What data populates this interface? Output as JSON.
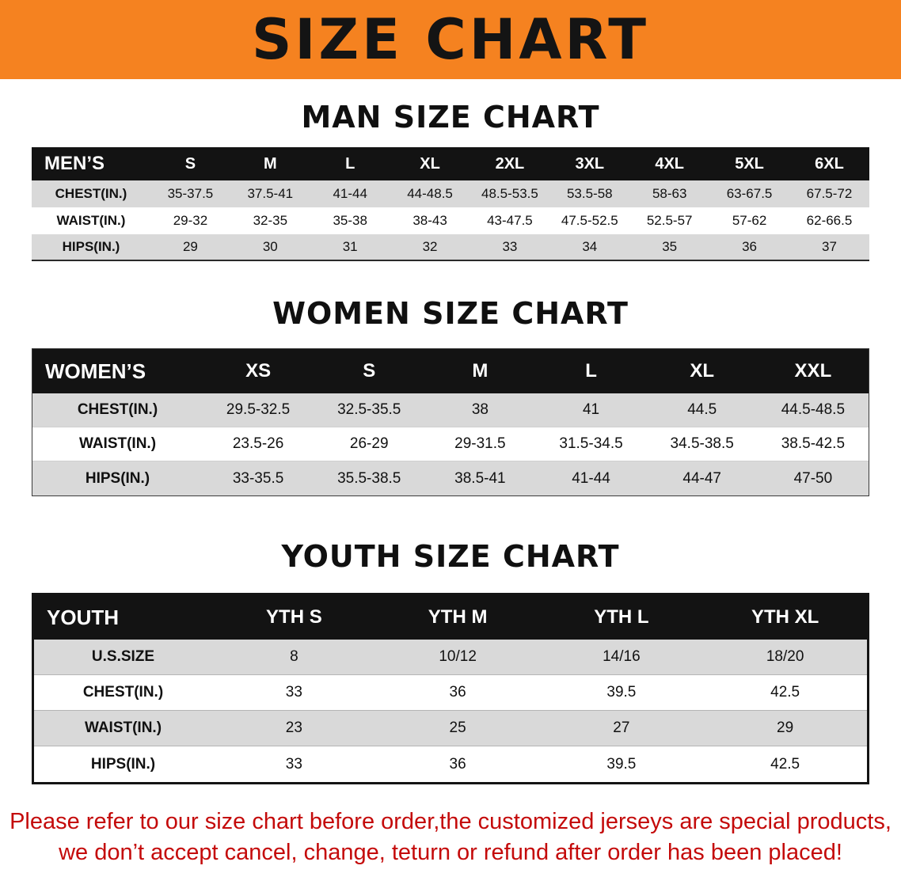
{
  "banner": {
    "title": "SIZE CHART"
  },
  "colors": {
    "banner_bg": "#F58220",
    "table_header_bg": "#131313",
    "row_shade": "#d9d9d9",
    "notice_red": "#C40A0A"
  },
  "sections": [
    {
      "title": "MAN SIZE CHART",
      "table": {
        "header_label": "MEN’S",
        "columns": [
          "S",
          "M",
          "L",
          "XL",
          "2XL",
          "3XL",
          "4XL",
          "5XL",
          "6XL"
        ],
        "rows": [
          {
            "label": "CHEST(IN.)",
            "values": [
              "35-37.5",
              "37.5-41",
              "41-44",
              "44-48.5",
              "48.5-53.5",
              "53.5-58",
              "58-63",
              "63-67.5",
              "67.5-72"
            ]
          },
          {
            "label": "WAIST(IN.)",
            "values": [
              "29-32",
              "32-35",
              "35-38",
              "38-43",
              "43-47.5",
              "47.5-52.5",
              "52.5-57",
              "57-62",
              "62-66.5"
            ]
          },
          {
            "label": "HIPS(IN.)",
            "values": [
              "29",
              "30",
              "31",
              "32",
              "33",
              "34",
              "35",
              "36",
              "37"
            ]
          }
        ]
      }
    },
    {
      "title": "WOMEN SIZE CHART",
      "table": {
        "header_label": "WOMEN’S",
        "columns": [
          "XS",
          "S",
          "M",
          "L",
          "XL",
          "XXL"
        ],
        "rows": [
          {
            "label": "CHEST(IN.)",
            "values": [
              "29.5-32.5",
              "32.5-35.5",
              "38",
              "41",
              "44.5",
              "44.5-48.5"
            ]
          },
          {
            "label": "WAIST(IN.)",
            "values": [
              "23.5-26",
              "26-29",
              "29-31.5",
              "31.5-34.5",
              "34.5-38.5",
              "38.5-42.5"
            ]
          },
          {
            "label": "HIPS(IN.)",
            "values": [
              "33-35.5",
              "35.5-38.5",
              "38.5-41",
              "41-44",
              "44-47",
              "47-50"
            ]
          }
        ]
      }
    },
    {
      "title": "YOUTH SIZE CHART",
      "table": {
        "header_label": "YOUTH",
        "columns": [
          "YTH S",
          "YTH M",
          "YTH L",
          "YTH XL"
        ],
        "rows": [
          {
            "label": "U.S.SIZE",
            "values": [
              "8",
              "10/12",
              "14/16",
              "18/20"
            ]
          },
          {
            "label": "CHEST(IN.)",
            "values": [
              "33",
              "36",
              "39.5",
              "42.5"
            ]
          },
          {
            "label": "WAIST(IN.)",
            "values": [
              "23",
              "25",
              "27",
              "29"
            ]
          },
          {
            "label": "HIPS(IN.)",
            "values": [
              "33",
              "36",
              "39.5",
              "42.5"
            ]
          }
        ]
      }
    }
  ],
  "footer": {
    "line1": "Please refer to our size chart before order,the customized jerseys are special products,",
    "line2": "we don’t accept cancel, change, teturn or refund after order has been placed!"
  }
}
